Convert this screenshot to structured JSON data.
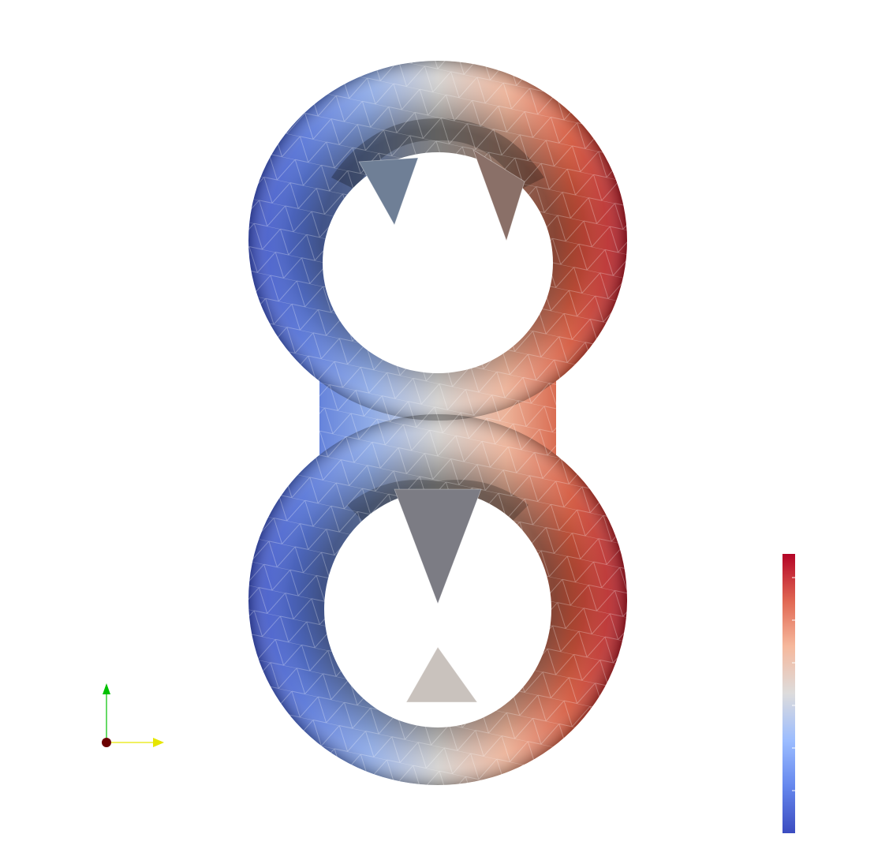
{
  "scene": {
    "object": "double-torus",
    "render_style": "flat-shaded triangulated mesh with white wireframe edges",
    "colormap": "cool-to-warm",
    "colormap_stops": [
      "#3b4cc0",
      "#7b9ff9",
      "#c0d4f5",
      "#dddcdc",
      "#f2cbb7",
      "#ee8468",
      "#b40426"
    ],
    "background": "#ffffff"
  },
  "colorbar": {
    "orientation": "vertical",
    "placement": "bottom-right",
    "tick_count": 7,
    "labels": []
  },
  "orientation_axes": {
    "placement": "bottom-left",
    "y_axis_color": "#00c000",
    "x_axis_color": "#e6e600",
    "z_axis_color": "#6b0000"
  }
}
